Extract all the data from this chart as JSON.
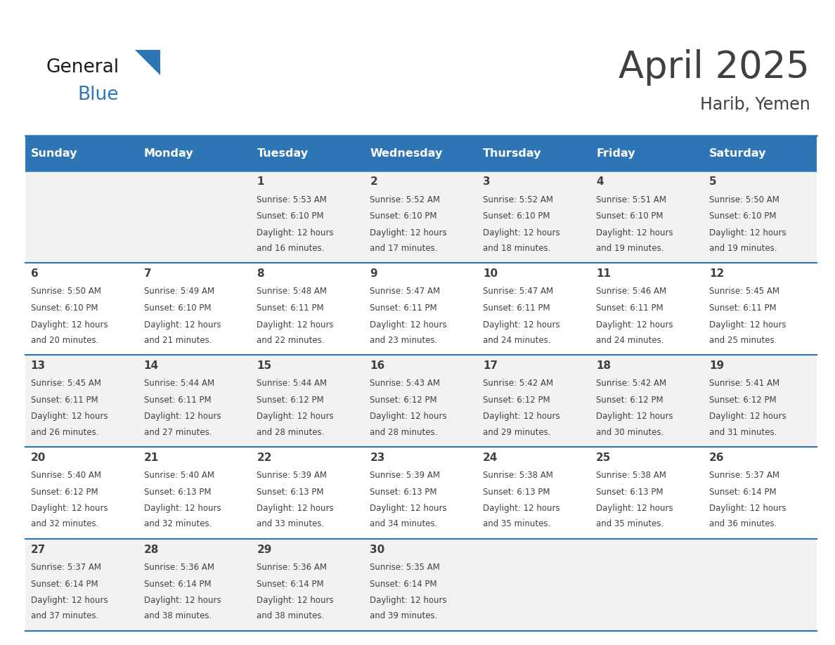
{
  "title": "April 2025",
  "subtitle": "Harib, Yemen",
  "days_of_week": [
    "Sunday",
    "Monday",
    "Tuesday",
    "Wednesday",
    "Thursday",
    "Friday",
    "Saturday"
  ],
  "header_bg": "#2E75B6",
  "header_text": "#FFFFFF",
  "cell_bg_odd": "#F2F2F2",
  "cell_bg_even": "#FFFFFF",
  "border_color": "#2E75B6",
  "text_color": "#404040",
  "calendar_data": [
    [
      {
        "day": "",
        "sunrise": "",
        "sunset": "",
        "daylight": ""
      },
      {
        "day": "",
        "sunrise": "",
        "sunset": "",
        "daylight": ""
      },
      {
        "day": "1",
        "sunrise": "5:53 AM",
        "sunset": "6:10 PM",
        "daylight": "12 hours and 16 minutes."
      },
      {
        "day": "2",
        "sunrise": "5:52 AM",
        "sunset": "6:10 PM",
        "daylight": "12 hours and 17 minutes."
      },
      {
        "day": "3",
        "sunrise": "5:52 AM",
        "sunset": "6:10 PM",
        "daylight": "12 hours and 18 minutes."
      },
      {
        "day": "4",
        "sunrise": "5:51 AM",
        "sunset": "6:10 PM",
        "daylight": "12 hours and 19 minutes."
      },
      {
        "day": "5",
        "sunrise": "5:50 AM",
        "sunset": "6:10 PM",
        "daylight": "12 hours and 19 minutes."
      }
    ],
    [
      {
        "day": "6",
        "sunrise": "5:50 AM",
        "sunset": "6:10 PM",
        "daylight": "12 hours and 20 minutes."
      },
      {
        "day": "7",
        "sunrise": "5:49 AM",
        "sunset": "6:10 PM",
        "daylight": "12 hours and 21 minutes."
      },
      {
        "day": "8",
        "sunrise": "5:48 AM",
        "sunset": "6:11 PM",
        "daylight": "12 hours and 22 minutes."
      },
      {
        "day": "9",
        "sunrise": "5:47 AM",
        "sunset": "6:11 PM",
        "daylight": "12 hours and 23 minutes."
      },
      {
        "day": "10",
        "sunrise": "5:47 AM",
        "sunset": "6:11 PM",
        "daylight": "12 hours and 24 minutes."
      },
      {
        "day": "11",
        "sunrise": "5:46 AM",
        "sunset": "6:11 PM",
        "daylight": "12 hours and 24 minutes."
      },
      {
        "day": "12",
        "sunrise": "5:45 AM",
        "sunset": "6:11 PM",
        "daylight": "12 hours and 25 minutes."
      }
    ],
    [
      {
        "day": "13",
        "sunrise": "5:45 AM",
        "sunset": "6:11 PM",
        "daylight": "12 hours and 26 minutes."
      },
      {
        "day": "14",
        "sunrise": "5:44 AM",
        "sunset": "6:11 PM",
        "daylight": "12 hours and 27 minutes."
      },
      {
        "day": "15",
        "sunrise": "5:44 AM",
        "sunset": "6:12 PM",
        "daylight": "12 hours and 28 minutes."
      },
      {
        "day": "16",
        "sunrise": "5:43 AM",
        "sunset": "6:12 PM",
        "daylight": "12 hours and 28 minutes."
      },
      {
        "day": "17",
        "sunrise": "5:42 AM",
        "sunset": "6:12 PM",
        "daylight": "12 hours and 29 minutes."
      },
      {
        "day": "18",
        "sunrise": "5:42 AM",
        "sunset": "6:12 PM",
        "daylight": "12 hours and 30 minutes."
      },
      {
        "day": "19",
        "sunrise": "5:41 AM",
        "sunset": "6:12 PM",
        "daylight": "12 hours and 31 minutes."
      }
    ],
    [
      {
        "day": "20",
        "sunrise": "5:40 AM",
        "sunset": "6:12 PM",
        "daylight": "12 hours and 32 minutes."
      },
      {
        "day": "21",
        "sunrise": "5:40 AM",
        "sunset": "6:13 PM",
        "daylight": "12 hours and 32 minutes."
      },
      {
        "day": "22",
        "sunrise": "5:39 AM",
        "sunset": "6:13 PM",
        "daylight": "12 hours and 33 minutes."
      },
      {
        "day": "23",
        "sunrise": "5:39 AM",
        "sunset": "6:13 PM",
        "daylight": "12 hours and 34 minutes."
      },
      {
        "day": "24",
        "sunrise": "5:38 AM",
        "sunset": "6:13 PM",
        "daylight": "12 hours and 35 minutes."
      },
      {
        "day": "25",
        "sunrise": "5:38 AM",
        "sunset": "6:13 PM",
        "daylight": "12 hours and 35 minutes."
      },
      {
        "day": "26",
        "sunrise": "5:37 AM",
        "sunset": "6:14 PM",
        "daylight": "12 hours and 36 minutes."
      }
    ],
    [
      {
        "day": "27",
        "sunrise": "5:37 AM",
        "sunset": "6:14 PM",
        "daylight": "12 hours and 37 minutes."
      },
      {
        "day": "28",
        "sunrise": "5:36 AM",
        "sunset": "6:14 PM",
        "daylight": "12 hours and 38 minutes."
      },
      {
        "day": "29",
        "sunrise": "5:36 AM",
        "sunset": "6:14 PM",
        "daylight": "12 hours and 38 minutes."
      },
      {
        "day": "30",
        "sunrise": "5:35 AM",
        "sunset": "6:14 PM",
        "daylight": "12 hours and 39 minutes."
      },
      {
        "day": "",
        "sunrise": "",
        "sunset": "",
        "daylight": ""
      },
      {
        "day": "",
        "sunrise": "",
        "sunset": "",
        "daylight": ""
      },
      {
        "day": "",
        "sunrise": "",
        "sunset": "",
        "daylight": ""
      }
    ]
  ],
  "logo_general_color": "#1a1a1a",
  "logo_blue_color": "#2E75B6",
  "logo_triangle_color": "#2E75B6",
  "fig_width": 11.88,
  "fig_height": 9.18,
  "dpi": 100
}
